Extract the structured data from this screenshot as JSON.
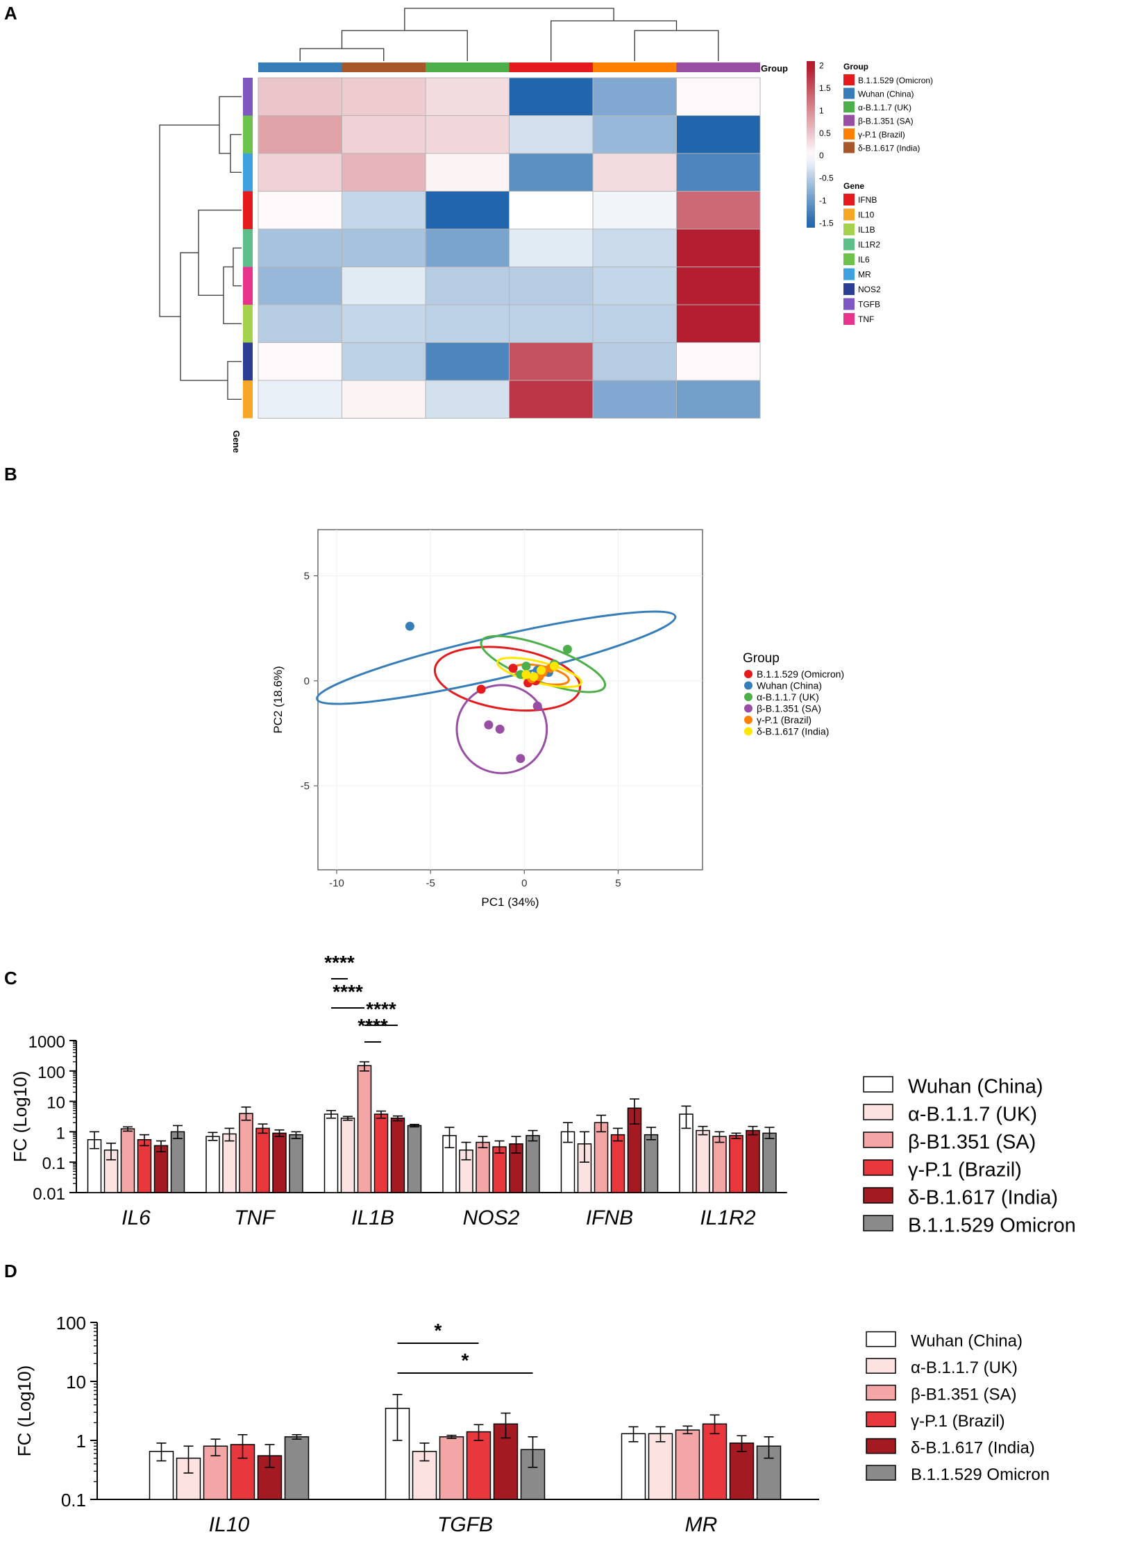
{
  "panel_labels": {
    "A": "A",
    "B": "B",
    "C": "C",
    "D": "D"
  },
  "colors": {
    "heat_low": "#2166ac",
    "heat_mid": "#ffffff",
    "heat_high": "#b2182b",
    "Omicron": "#e41a1c",
    "Wuhan": "#377eb8",
    "Alpha": "#4daf4a",
    "Beta": "#984ea3",
    "Gamma": "#ff7f00",
    "Delta": "#a65628",
    "DeltaYellow": "#ffe600",
    "IFNB": "#e41a1c",
    "IL10": "#f5a623",
    "IL1B": "#a6d14c",
    "IL1R2": "#5cbf89",
    "IL6": "#6cc24a",
    "MR": "#3fa2e0",
    "NOS2": "#2c3e94",
    "TGFB": "#7e57c2",
    "TNF": "#e8338c",
    "bar_wuhan": "#ffffff",
    "bar_alpha": "#fde2e2",
    "bar_beta": "#f4a5a5",
    "bar_gamma": "#e8383d",
    "bar_delta": "#a31a22",
    "bar_omicron": "#8a8a8a"
  },
  "chart_data": [
    {
      "type": "heatmap",
      "panel": "A",
      "column_annotation_label": "Group",
      "row_annotation_label": "Gene",
      "columns": [
        "Wuhan (China)",
        "δ-B.1.617 (India)",
        "α-B.1.1.7 (UK)",
        "B.1.1.529 (Omicron)",
        "γ-P.1 (Brazil)",
        "β-B.1.351 (SA)"
      ],
      "column_color_keys": [
        "Wuhan",
        "Delta",
        "Alpha",
        "Omicron",
        "Gamma",
        "Beta"
      ],
      "rows": [
        "TGFB",
        "IL6",
        "MR",
        "IFNB",
        "IL1R2",
        "TNF",
        "IL1B",
        "NOS2",
        "IL10"
      ],
      "values": [
        [
          0.5,
          0.45,
          0.3,
          -1.5,
          -0.85,
          0.05
        ],
        [
          0.8,
          0.4,
          0.35,
          -0.3,
          -0.7,
          -1.5
        ],
        [
          0.4,
          0.65,
          0.1,
          -1.1,
          0.3,
          -1.2
        ],
        [
          0.05,
          -0.4,
          -1.5,
          0.0,
          -0.1,
          1.3
        ],
        [
          -0.6,
          -0.6,
          -0.9,
          -0.2,
          -0.35,
          1.95
        ],
        [
          -0.7,
          -0.2,
          -0.5,
          -0.5,
          -0.4,
          1.95
        ],
        [
          -0.5,
          -0.4,
          -0.45,
          -0.45,
          -0.45,
          1.95
        ],
        [
          0.05,
          -0.45,
          -1.2,
          1.5,
          -0.5,
          0.05
        ],
        [
          -0.15,
          0.1,
          -0.3,
          1.75,
          -0.85,
          -0.95
        ]
      ],
      "legend_scale": {
        "ticks": [
          2,
          1.5,
          1,
          0.5,
          0,
          -0.5,
          -1,
          -1.5
        ],
        "range": [
          -1.6,
          2.1
        ]
      },
      "legend_group_title": "Group",
      "legend_groups": [
        {
          "label": "B.1.1.529 (Omicron)",
          "key": "Omicron"
        },
        {
          "label": "Wuhan (China)",
          "key": "Wuhan"
        },
        {
          "label": "α-B.1.1.7 (UK)",
          "key": "Alpha"
        },
        {
          "label": "β-B.1.351 (SA)",
          "key": "Beta"
        },
        {
          "label": "γ-P.1 (Brazil)",
          "key": "Gamma"
        },
        {
          "label": "δ-B.1.617 (India)",
          "key": "Delta"
        }
      ],
      "legend_gene_title": "Gene",
      "legend_genes": [
        "IFNB",
        "IL10",
        "IL1B",
        "IL1R2",
        "IL6",
        "MR",
        "NOS2",
        "TGFB",
        "TNF"
      ]
    },
    {
      "type": "scatter",
      "panel": "B",
      "xlabel": "PC1 (34%)",
      "ylabel": "PC2 (18.6%)",
      "xlim": [
        -11,
        9.5
      ],
      "ylim": [
        -9,
        7.2
      ],
      "xticks": [
        -10,
        -5,
        0,
        5
      ],
      "yticks": [
        5,
        0,
        -5
      ],
      "legend_title": "Group",
      "series": [
        {
          "name": "B.1.1.529 (Omicron)",
          "key": "Omicron",
          "points": [
            [
              -2.3,
              -0.4
            ],
            [
              -0.6,
              0.6
            ],
            [
              0.6,
              0.0
            ],
            [
              0.2,
              -0.1
            ]
          ],
          "ellipse": {
            "cx": -0.9,
            "cy": 0.1,
            "rx": 3.9,
            "ry": 1.45,
            "angle": 8
          }
        },
        {
          "name": "Wuhan (China)",
          "key": "Wuhan",
          "points": [
            [
              -6.1,
              2.6
            ],
            [
              0.7,
              0.5
            ],
            [
              1.3,
              0.4
            ],
            [
              0.3,
              0.2
            ]
          ],
          "ellipse": {
            "cx": -1.5,
            "cy": 1.1,
            "rx": 9.8,
            "ry": 1.0,
            "angle": -13
          }
        },
        {
          "name": "α-B.1.1.7 (UK)",
          "key": "Alpha",
          "points": [
            [
              2.3,
              1.5
            ],
            [
              0.1,
              0.7
            ],
            [
              1.6,
              0.8
            ],
            [
              -0.2,
              0.3
            ]
          ],
          "ellipse": {
            "cx": 1.0,
            "cy": 0.8,
            "rx": 3.5,
            "ry": 0.85,
            "angle": 20
          }
        },
        {
          "name": "β-B.1.351 (SA)",
          "key": "Beta",
          "points": [
            [
              -1.9,
              -2.1
            ],
            [
              -1.3,
              -2.3
            ],
            [
              -0.2,
              -3.7
            ],
            [
              0.7,
              -1.2
            ]
          ],
          "ellipse": {
            "cx": -1.2,
            "cy": -2.3,
            "rx": 2.4,
            "ry": 2.1,
            "angle": 0
          }
        },
        {
          "name": "γ-P.1 (Brazil)",
          "key": "Gamma",
          "points": [
            [
              0.4,
              0.1
            ],
            [
              1.0,
              0.4
            ],
            [
              0.8,
              0.2
            ],
            [
              1.4,
              0.6
            ]
          ],
          "ellipse": {
            "cx": 0.9,
            "cy": 0.3,
            "rx": 1.5,
            "ry": 0.4,
            "angle": 12
          }
        },
        {
          "name": "δ-B.1.617 (India)",
          "key": "DeltaYellow",
          "points": [
            [
              0.1,
              0.3
            ],
            [
              0.9,
              0.5
            ],
            [
              0.5,
              0.2
            ],
            [
              1.6,
              0.7
            ]
          ],
          "ellipse": {
            "cx": 0.8,
            "cy": 0.4,
            "rx": 2.3,
            "ry": 0.5,
            "angle": 14
          }
        }
      ]
    },
    {
      "type": "bar",
      "panel": "C",
      "ylabel": "FC (Log10)",
      "yscale": "log",
      "ylim": [
        0.01,
        1000
      ],
      "yticks": [
        "0.01",
        "0.1",
        "1",
        "10",
        "100",
        "1000"
      ],
      "categories": [
        "IL6",
        "TNF",
        "IL1B",
        "NOS2",
        "IFNB",
        "IL1R2"
      ],
      "series": [
        {
          "name": "Wuhan (China)",
          "key": "bar_wuhan",
          "values": [
            0.55,
            0.7,
            3.8,
            0.75,
            1.0,
            3.8
          ],
          "err_low": [
            0.28,
            0.52,
            2.8,
            0.3,
            0.45,
            1.3
          ],
          "err_high": [
            1.0,
            0.95,
            5.0,
            1.4,
            2.0,
            7.0
          ]
        },
        {
          "name": "α-B.1.1.7 (UK)",
          "key": "bar_alpha",
          "values": [
            0.25,
            0.85,
            2.8,
            0.25,
            0.4,
            1.1
          ],
          "err_low": [
            0.12,
            0.5,
            2.4,
            0.12,
            0.1,
            0.8
          ],
          "err_high": [
            0.42,
            1.3,
            3.2,
            0.45,
            1.0,
            1.5
          ]
        },
        {
          "name": "β-B1.351 (SA)",
          "key": "bar_beta",
          "values": [
            1.25,
            4.0,
            150,
            0.45,
            2.0,
            0.7
          ],
          "err_low": [
            1.05,
            2.4,
            100,
            0.3,
            1.0,
            0.45
          ],
          "err_high": [
            1.45,
            6.5,
            200,
            0.7,
            3.5,
            1.0
          ]
        },
        {
          "name": "γ-P.1 (Brazil)",
          "key": "bar_gamma",
          "values": [
            0.55,
            1.3,
            3.8,
            0.32,
            0.8,
            0.75
          ],
          "err_low": [
            0.35,
            0.9,
            2.8,
            0.2,
            0.5,
            0.6
          ],
          "err_high": [
            0.8,
            1.8,
            4.8,
            0.5,
            1.3,
            0.9
          ]
        },
        {
          "name": "δ-B.1.617 (India)",
          "key": "bar_delta",
          "values": [
            0.35,
            0.9,
            2.8,
            0.4,
            6.0,
            1.1
          ],
          "err_low": [
            0.22,
            0.7,
            2.3,
            0.2,
            1.8,
            0.8
          ],
          "err_high": [
            0.5,
            1.15,
            3.3,
            0.7,
            12.0,
            1.5
          ]
        },
        {
          "name": "B.1.1.529 Omicron",
          "key": "bar_omicron",
          "values": [
            1.0,
            0.8,
            1.6,
            0.75,
            0.8,
            0.9
          ],
          "err_low": [
            0.6,
            0.6,
            1.45,
            0.5,
            0.55,
            0.6
          ],
          "err_high": [
            1.6,
            1.0,
            1.75,
            1.1,
            1.4,
            1.4
          ]
        }
      ],
      "annotations": [
        {
          "text": "****",
          "from": [
            2,
            0
          ],
          "to": [
            2,
            1
          ]
        },
        {
          "text": "****",
          "from": [
            2,
            0
          ],
          "to": [
            2,
            2
          ]
        },
        {
          "text": "****",
          "from": [
            2,
            2
          ],
          "to": [
            2,
            3
          ]
        },
        {
          "text": "****",
          "from": [
            2,
            2
          ],
          "to": [
            2,
            4
          ]
        }
      ]
    },
    {
      "type": "bar",
      "panel": "D",
      "ylabel": "FC (Log10)",
      "yscale": "log",
      "ylim": [
        0.1,
        100
      ],
      "yticks": [
        "0.1",
        "1",
        "10",
        "100"
      ],
      "categories": [
        "IL10",
        "TGFB",
        "MR"
      ],
      "series": [
        {
          "name": "Wuhan (China)",
          "key": "bar_wuhan",
          "values": [
            0.65,
            3.5,
            1.3
          ],
          "err_low": [
            0.45,
            1.0,
            0.95
          ],
          "err_high": [
            0.9,
            6.0,
            1.7
          ]
        },
        {
          "name": "α-B.1.1.7 (UK)",
          "key": "bar_alpha",
          "values": [
            0.5,
            0.65,
            1.3
          ],
          "err_low": [
            0.28,
            0.45,
            0.95
          ],
          "err_high": [
            0.8,
            0.9,
            1.7
          ]
        },
        {
          "name": "β-B1.351 (SA)",
          "key": "bar_beta",
          "values": [
            0.8,
            1.15,
            1.5
          ],
          "err_low": [
            0.55,
            1.08,
            1.3
          ],
          "err_high": [
            1.05,
            1.22,
            1.75
          ]
        },
        {
          "name": "γ-P.1 (Brazil)",
          "key": "bar_gamma",
          "values": [
            0.85,
            1.4,
            1.9
          ],
          "err_low": [
            0.5,
            1.0,
            1.3
          ],
          "err_high": [
            1.25,
            1.85,
            2.7
          ]
        },
        {
          "name": "δ-B.1.617 (India)",
          "key": "bar_delta",
          "values": [
            0.55,
            1.9,
            0.9
          ],
          "err_low": [
            0.35,
            1.1,
            0.65
          ],
          "err_high": [
            0.85,
            2.9,
            1.2
          ]
        },
        {
          "name": "B.1.1.529 Omicron",
          "key": "bar_omicron",
          "values": [
            1.15,
            0.7,
            0.8
          ],
          "err_low": [
            1.05,
            0.35,
            0.5
          ],
          "err_high": [
            1.25,
            1.15,
            1.15
          ]
        }
      ],
      "annotations": [
        {
          "text": "*",
          "from": [
            1,
            0
          ],
          "to": [
            1,
            3
          ]
        },
        {
          "text": "*",
          "from": [
            1,
            0
          ],
          "to": [
            1,
            5
          ]
        }
      ]
    }
  ]
}
